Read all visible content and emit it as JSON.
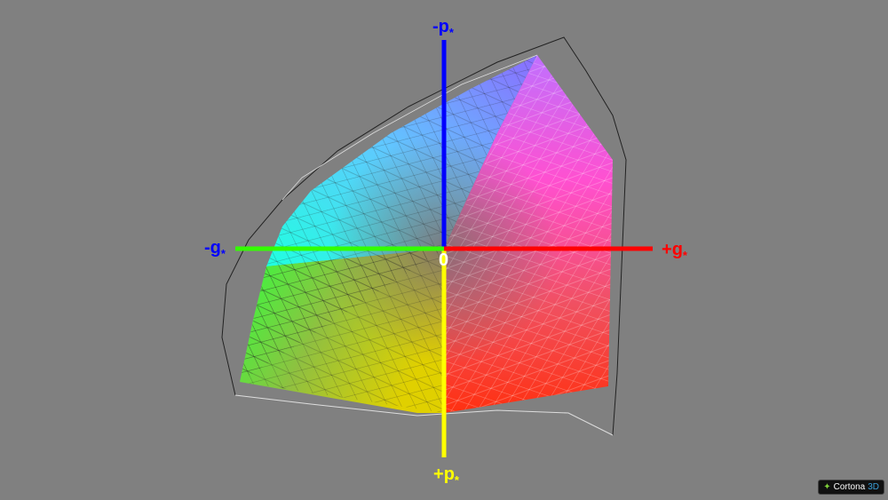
{
  "axes": {
    "neg_p": {
      "sign": "-",
      "letter": "p",
      "sub": "*",
      "color": "#0000ff"
    },
    "pos_p": {
      "sign": "+",
      "letter": "p",
      "sub": "*",
      "color": "#ffff00"
    },
    "neg_g": {
      "sign": "-",
      "letter": "g",
      "sub": "*",
      "color": "#0000ff"
    },
    "pos_g": {
      "sign": "+",
      "letter": "g",
      "sub": "*",
      "color": "#ff0000"
    },
    "origin": "0"
  },
  "axis_colors": {
    "up": "#0000ff",
    "down": "#ffff00",
    "left": "#33ff00",
    "right": "#ff0000"
  },
  "background": "#808080",
  "logo": {
    "text": "Cortona",
    "accent": "3D"
  }
}
